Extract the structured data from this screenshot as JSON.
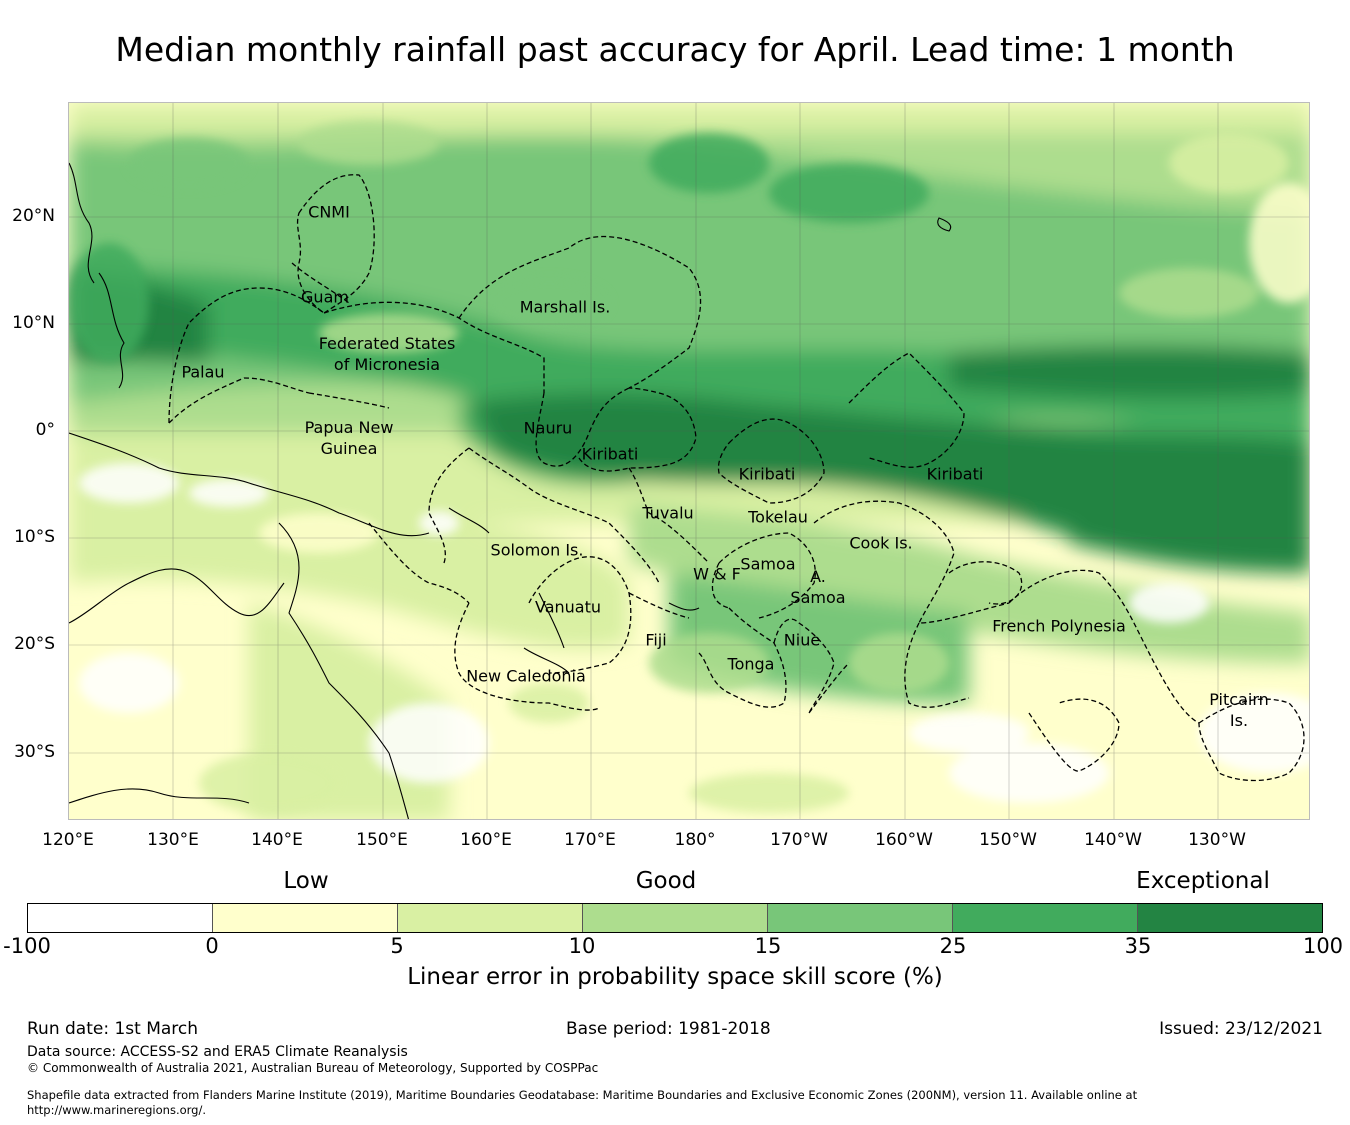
{
  "title": "Median monthly rainfall past accuracy for April. Lead time: 1 month",
  "lon_ticks": [
    "120°E",
    "130°E",
    "140°E",
    "150°E",
    "160°E",
    "170°E",
    "180°",
    "170°W",
    "160°W",
    "150°W",
    "140°W",
    "130°W"
  ],
  "lat_ticks": [
    "20°N",
    "10°N",
    "0°",
    "10°S",
    "20°S",
    "30°S"
  ],
  "regions": [
    "CNMI",
    "Guam",
    "Marshall Is.",
    "Federated States\nof Micronesia",
    "Palau",
    "Papua New\nGuinea",
    "Nauru",
    "Kiribati",
    "Kiribati",
    "Kiribati",
    "Tuvalu",
    "Tokelau",
    "Solomon Is.",
    "Cook Is.",
    "Samoa",
    "W & F",
    "A.\nSamoa",
    "Vanuatu",
    "Fiji",
    "Niue",
    "Tonga",
    "New Caledonia",
    "French Polynesia",
    "Pitcairn\nIs."
  ],
  "colorbar": {
    "categories": [
      "Low",
      "Good",
      "Exceptional"
    ],
    "tick_labels": [
      "-100",
      "0",
      "5",
      "10",
      "15",
      "25",
      "35",
      "100"
    ],
    "colors": [
      "#ffffff",
      "#ffffcc",
      "#d9f0a3",
      "#addd8e",
      "#78c679",
      "#41ab5d",
      "#238443"
    ],
    "label": "Linear error in probability space skill score (%)"
  },
  "footer": {
    "run_date": "Run date: 1st March",
    "base_period": "Base period: 1981-2018",
    "issued": "Issued: 23/12/2021",
    "data_source": "Data source: ACCESS-S2 and ERA5 Climate Reanalysis",
    "copyright": "© Commonwealth of Australia 2021, Australian Bureau of Meteorology, Supported by COSPPac",
    "shapefile": "Shapefile data extracted from Flanders Marine Institute (2019), Maritime Boundaries Geodatabase: Maritime Boundaries and Exclusive Economic Zones (200NM), version 11. Available online at",
    "url": "http://www.marineregions.org/."
  }
}
